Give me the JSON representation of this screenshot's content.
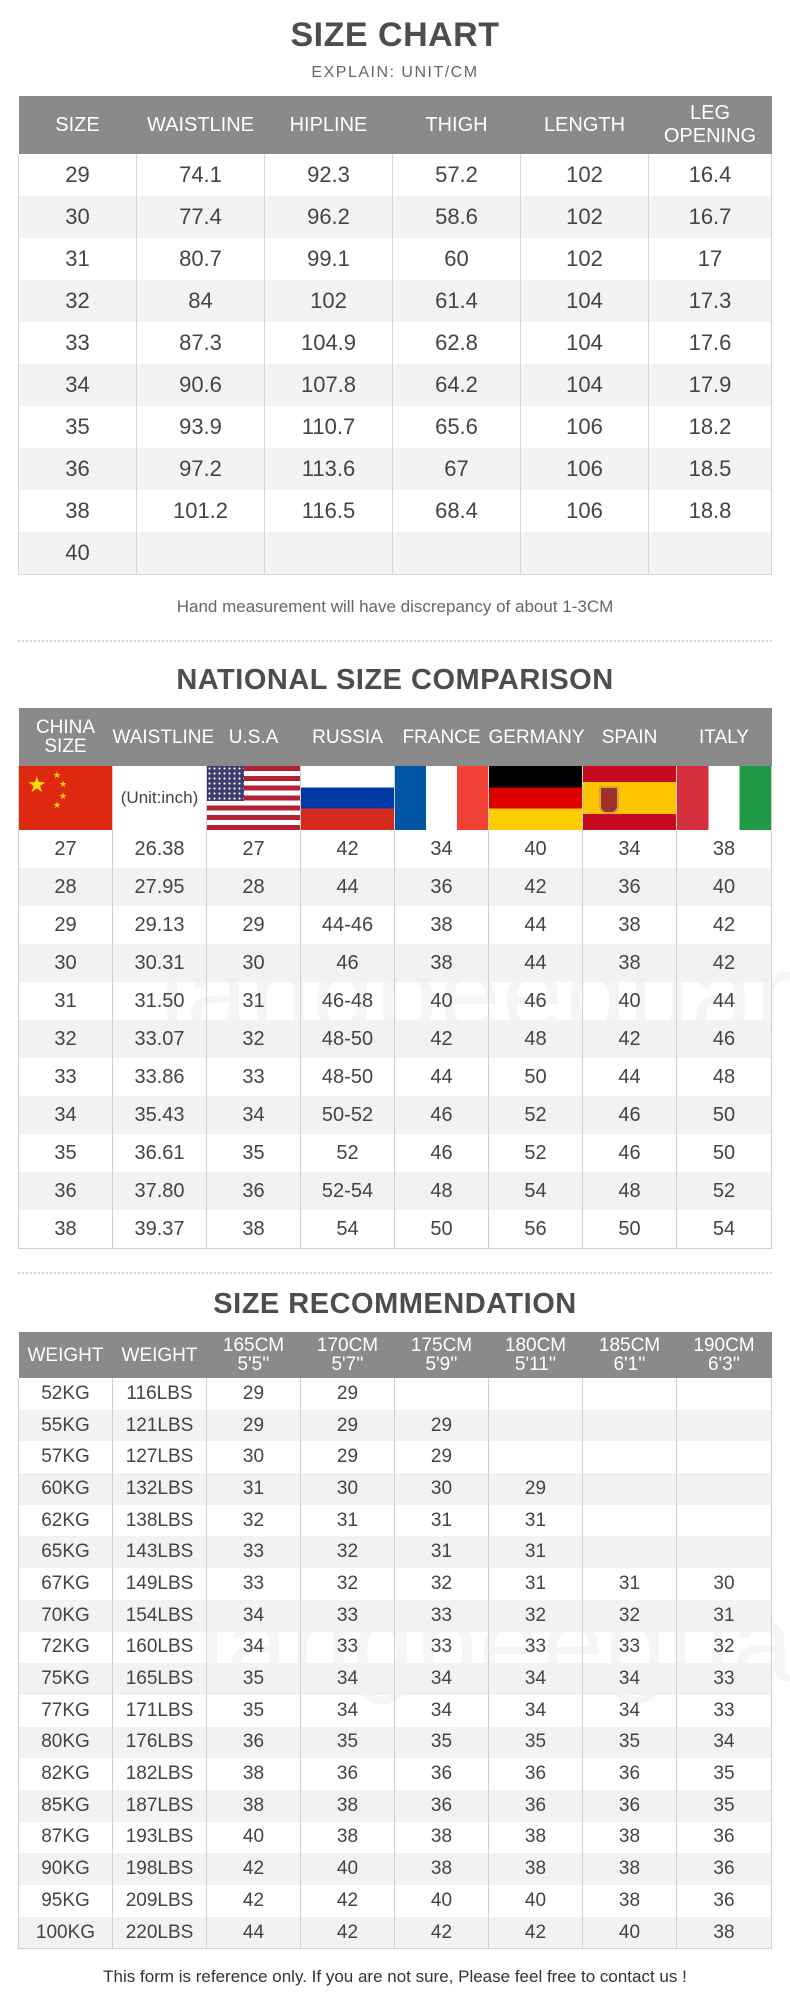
{
  "size_chart": {
    "title": "SIZE CHART",
    "subtitle": "EXPLAIN: UNIT/CM",
    "headers": [
      "SIZE",
      "WAISTLINE",
      "HIPLINE",
      "THIGH",
      "LENGTH",
      "LEG OPENING"
    ],
    "rows": [
      [
        "29",
        "74.1",
        "92.3",
        "57.2",
        "102",
        "16.4"
      ],
      [
        "30",
        "77.4",
        "96.2",
        "58.6",
        "102",
        "16.7"
      ],
      [
        "31",
        "80.7",
        "99.1",
        "60",
        "102",
        "17"
      ],
      [
        "32",
        "84",
        "102",
        "61.4",
        "104",
        "17.3"
      ],
      [
        "33",
        "87.3",
        "104.9",
        "62.8",
        "104",
        "17.6"
      ],
      [
        "34",
        "90.6",
        "107.8",
        "64.2",
        "104",
        "17.9"
      ],
      [
        "35",
        "93.9",
        "110.7",
        "65.6",
        "106",
        "18.2"
      ],
      [
        "36",
        "97.2",
        "113.6",
        "67",
        "106",
        "18.5"
      ],
      [
        "38",
        "101.2",
        "116.5",
        "68.4",
        "106",
        "18.8"
      ],
      [
        "40",
        "",
        "",
        "",
        "",
        ""
      ]
    ],
    "note": "Hand measurement will have discrepancy of about 1-3CM"
  },
  "national": {
    "title": "NATIONAL SIZE COMPARISON",
    "headers": [
      "CHINA SIZE",
      "WAISTLINE",
      "U.S.A",
      "RUSSIA",
      "FRANCE",
      "GERMANY",
      "SPAIN",
      "ITALY"
    ],
    "unit_label": "(Unit:inch)",
    "flags": [
      "china-flag",
      "usa-flag",
      "russia-flag",
      "france-flag",
      "germany-flag",
      "spain-flag",
      "italy-flag"
    ],
    "rows": [
      [
        "27",
        "26.38",
        "27",
        "42",
        "34",
        "40",
        "34",
        "38"
      ],
      [
        "28",
        "27.95",
        "28",
        "44",
        "36",
        "42",
        "36",
        "40"
      ],
      [
        "29",
        "29.13",
        "29",
        "44-46",
        "38",
        "44",
        "38",
        "42"
      ],
      [
        "30",
        "30.31",
        "30",
        "46",
        "38",
        "44",
        "38",
        "42"
      ],
      [
        "31",
        "31.50",
        "31",
        "46-48",
        "40",
        "46",
        "40",
        "44"
      ],
      [
        "32",
        "33.07",
        "32",
        "48-50",
        "42",
        "48",
        "42",
        "46"
      ],
      [
        "33",
        "33.86",
        "33",
        "48-50",
        "44",
        "50",
        "44",
        "48"
      ],
      [
        "34",
        "35.43",
        "34",
        "50-52",
        "46",
        "52",
        "46",
        "50"
      ],
      [
        "35",
        "36.61",
        "35",
        "52",
        "46",
        "52",
        "46",
        "50"
      ],
      [
        "36",
        "37.80",
        "36",
        "52-54",
        "48",
        "54",
        "48",
        "52"
      ],
      [
        "38",
        "39.37",
        "38",
        "54",
        "50",
        "56",
        "50",
        "54"
      ]
    ]
  },
  "recommendation": {
    "title": "SIZE RECOMMENDATION",
    "headers": [
      {
        "top": "WEIGHT",
        "bottom": ""
      },
      {
        "top": "WEIGHT",
        "bottom": ""
      },
      {
        "top": "165CM",
        "bottom": "5'5''"
      },
      {
        "top": "170CM",
        "bottom": "5'7''"
      },
      {
        "top": "175CM",
        "bottom": "5'9''"
      },
      {
        "top": "180CM",
        "bottom": "5'11''"
      },
      {
        "top": "185CM",
        "bottom": "6'1''"
      },
      {
        "top": "190CM",
        "bottom": "6'3''"
      }
    ],
    "rows": [
      [
        "52KG",
        "116LBS",
        "29",
        "29",
        "",
        "",
        "",
        ""
      ],
      [
        "55KG",
        "121LBS",
        "29",
        "29",
        "29",
        "",
        "",
        ""
      ],
      [
        "57KG",
        "127LBS",
        "30",
        "29",
        "29",
        "",
        "",
        ""
      ],
      [
        "60KG",
        "132LBS",
        "31",
        "30",
        "30",
        "29",
        "",
        ""
      ],
      [
        "62KG",
        "138LBS",
        "32",
        "31",
        "31",
        "31",
        "",
        ""
      ],
      [
        "65KG",
        "143LBS",
        "33",
        "32",
        "31",
        "31",
        "",
        ""
      ],
      [
        "67KG",
        "149LBS",
        "33",
        "32",
        "32",
        "31",
        "31",
        "30"
      ],
      [
        "70KG",
        "154LBS",
        "34",
        "33",
        "33",
        "32",
        "32",
        "31"
      ],
      [
        "72KG",
        "160LBS",
        "34",
        "33",
        "33",
        "33",
        "33",
        "32"
      ],
      [
        "75KG",
        "165LBS",
        "35",
        "34",
        "34",
        "34",
        "34",
        "33"
      ],
      [
        "77KG",
        "171LBS",
        "35",
        "34",
        "34",
        "34",
        "34",
        "33"
      ],
      [
        "80KG",
        "176LBS",
        "36",
        "35",
        "35",
        "35",
        "35",
        "34"
      ],
      [
        "82KG",
        "182LBS",
        "38",
        "36",
        "36",
        "36",
        "36",
        "35"
      ],
      [
        "85KG",
        "187LBS",
        "38",
        "38",
        "36",
        "36",
        "36",
        "35"
      ],
      [
        "87KG",
        "193LBS",
        "40",
        "38",
        "38",
        "38",
        "38",
        "36"
      ],
      [
        "90KG",
        "198LBS",
        "42",
        "40",
        "38",
        "38",
        "38",
        "36"
      ],
      [
        "95KG",
        "209LBS",
        "42",
        "42",
        "40",
        "40",
        "38",
        "36"
      ],
      [
        "100KG",
        "220LBS",
        "44",
        "42",
        "42",
        "42",
        "40",
        "38"
      ]
    ],
    "note": "This form is reference only. If you are not sure, Please feel free to contact us !"
  },
  "watermark": "langbeeguar",
  "colors": {
    "header_bg": "#8a8a8a",
    "stripe": "#f2f2f2",
    "title": "#4d4d4d"
  }
}
